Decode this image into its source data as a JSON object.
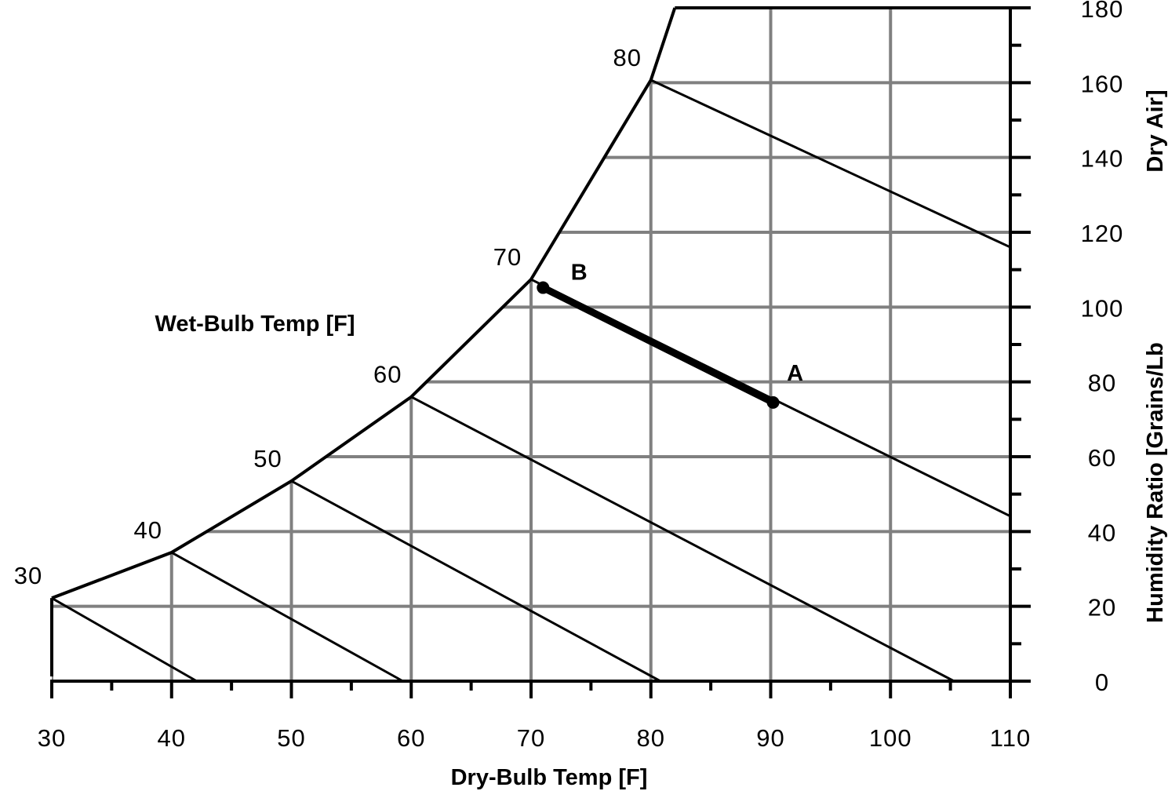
{
  "chart_data": {
    "type": "line",
    "xlabel": "Dry-Bulb Temp [F]",
    "ylabel": "Humidity Ratio [Grains/Lb Dry Air]",
    "ylabel_parts": [
      "Humidity Ratio [Grains/Lb",
      "Dry Air]"
    ],
    "curve_label": "Wet-Bulb Temp [F]",
    "xlim": [
      30,
      110
    ],
    "ylim": [
      0,
      180
    ],
    "x_ticks": [
      30,
      40,
      50,
      60,
      70,
      80,
      90,
      100,
      110
    ],
    "y_ticks": [
      0,
      20,
      40,
      60,
      80,
      100,
      120,
      140,
      160,
      180
    ],
    "grid": true,
    "saturation_curve": [
      [
        30,
        22.2
      ],
      [
        40,
        34.4
      ],
      [
        50,
        53.5
      ],
      [
        60,
        76
      ],
      [
        70,
        107.4
      ],
      [
        80,
        160.7
      ],
      [
        82,
        180
      ]
    ],
    "wet_bulb_lines": [
      {
        "label": "30",
        "points": [
          [
            30,
            22.2
          ],
          [
            42.1,
            0
          ]
        ]
      },
      {
        "label": "40",
        "points": [
          [
            40,
            34.4
          ],
          [
            59.3,
            0
          ]
        ]
      },
      {
        "label": "50",
        "points": [
          [
            50,
            53.5
          ],
          [
            80.8,
            0
          ]
        ]
      },
      {
        "label": "60",
        "points": [
          [
            60,
            76
          ],
          [
            105.3,
            0
          ]
        ]
      },
      {
        "label": "70",
        "points": [
          [
            70,
            107.4
          ],
          [
            110,
            44.1
          ]
        ]
      },
      {
        "label": "80",
        "points": [
          [
            80,
            160.7
          ],
          [
            110,
            116
          ]
        ]
      }
    ],
    "process": {
      "points": [
        {
          "label": "A",
          "x": 90.2,
          "y": 74.5
        },
        {
          "label": "B",
          "x": 71.0,
          "y": 105.2
        }
      ]
    }
  }
}
